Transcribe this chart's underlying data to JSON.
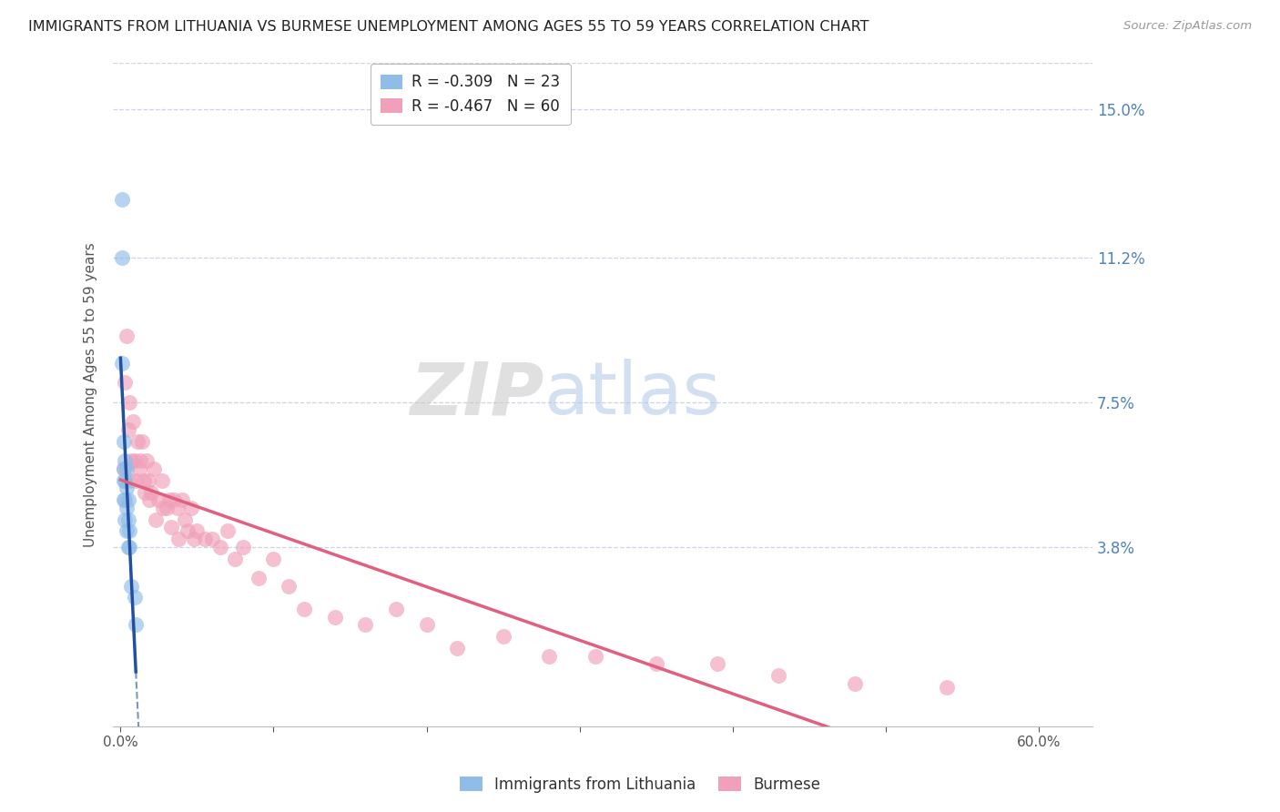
{
  "title": "IMMIGRANTS FROM LITHUANIA VS BURMESE UNEMPLOYMENT AMONG AGES 55 TO 59 YEARS CORRELATION CHART",
  "source": "Source: ZipAtlas.com",
  "ylabel": "Unemployment Among Ages 55 to 59 years",
  "x_tick_positions": [
    0.0,
    0.1,
    0.2,
    0.3,
    0.4,
    0.5,
    0.6
  ],
  "x_tick_labels": [
    "0.0%",
    "",
    "",
    "",
    "",
    "",
    "60.0%"
  ],
  "y_ticks_right": [
    0.0,
    0.038,
    0.075,
    0.112,
    0.15
  ],
  "y_tick_labels_right": [
    "",
    "3.8%",
    "7.5%",
    "11.2%",
    "15.0%"
  ],
  "xlim": [
    -0.005,
    0.635
  ],
  "ylim": [
    -0.008,
    0.162
  ],
  "legend_label1": "Immigrants from Lithuania",
  "legend_label2": "Burmese",
  "watermark_zip": "ZIP",
  "watermark_atlas": "atlas",
  "lithuania_x": [
    0.001,
    0.001,
    0.001,
    0.002,
    0.002,
    0.002,
    0.002,
    0.003,
    0.003,
    0.003,
    0.003,
    0.004,
    0.004,
    0.004,
    0.004,
    0.005,
    0.005,
    0.005,
    0.006,
    0.006,
    0.007,
    0.009,
    0.01
  ],
  "lithuania_y": [
    0.127,
    0.112,
    0.085,
    0.065,
    0.058,
    0.055,
    0.05,
    0.06,
    0.055,
    0.05,
    0.045,
    0.058,
    0.053,
    0.048,
    0.042,
    0.05,
    0.045,
    0.038,
    0.042,
    0.038,
    0.028,
    0.025,
    0.018
  ],
  "burmese_x": [
    0.002,
    0.003,
    0.004,
    0.005,
    0.006,
    0.006,
    0.007,
    0.008,
    0.009,
    0.01,
    0.011,
    0.012,
    0.013,
    0.014,
    0.015,
    0.016,
    0.017,
    0.018,
    0.019,
    0.02,
    0.022,
    0.023,
    0.025,
    0.027,
    0.028,
    0.03,
    0.032,
    0.033,
    0.035,
    0.037,
    0.038,
    0.04,
    0.042,
    0.044,
    0.046,
    0.048,
    0.05,
    0.055,
    0.06,
    0.065,
    0.07,
    0.075,
    0.08,
    0.09,
    0.1,
    0.11,
    0.12,
    0.14,
    0.16,
    0.18,
    0.2,
    0.22,
    0.25,
    0.28,
    0.31,
    0.35,
    0.39,
    0.43,
    0.48,
    0.54
  ],
  "burmese_y": [
    0.058,
    0.08,
    0.092,
    0.068,
    0.075,
    0.055,
    0.06,
    0.07,
    0.06,
    0.055,
    0.065,
    0.058,
    0.06,
    0.065,
    0.055,
    0.052,
    0.06,
    0.055,
    0.05,
    0.052,
    0.058,
    0.045,
    0.05,
    0.055,
    0.048,
    0.048,
    0.05,
    0.043,
    0.05,
    0.048,
    0.04,
    0.05,
    0.045,
    0.042,
    0.048,
    0.04,
    0.042,
    0.04,
    0.04,
    0.038,
    0.042,
    0.035,
    0.038,
    0.03,
    0.035,
    0.028,
    0.022,
    0.02,
    0.018,
    0.022,
    0.018,
    0.012,
    0.015,
    0.01,
    0.01,
    0.008,
    0.008,
    0.005,
    0.003,
    0.002
  ],
  "lithuania_color": "#90bce8",
  "burmese_color": "#f0a0b8",
  "lithuania_line_color": "#2050a0",
  "burmese_line_color": "#e06080",
  "title_color": "#222222",
  "right_axis_color": "#5080c0",
  "grid_color": "#c8d4e8",
  "title_fontsize": 11.5,
  "source_fontsize": 9.5,
  "legend_R1": "R = -0.309",
  "legend_N1": "N = 23",
  "legend_R2": "R = -0.467",
  "legend_N2": "N = 60"
}
